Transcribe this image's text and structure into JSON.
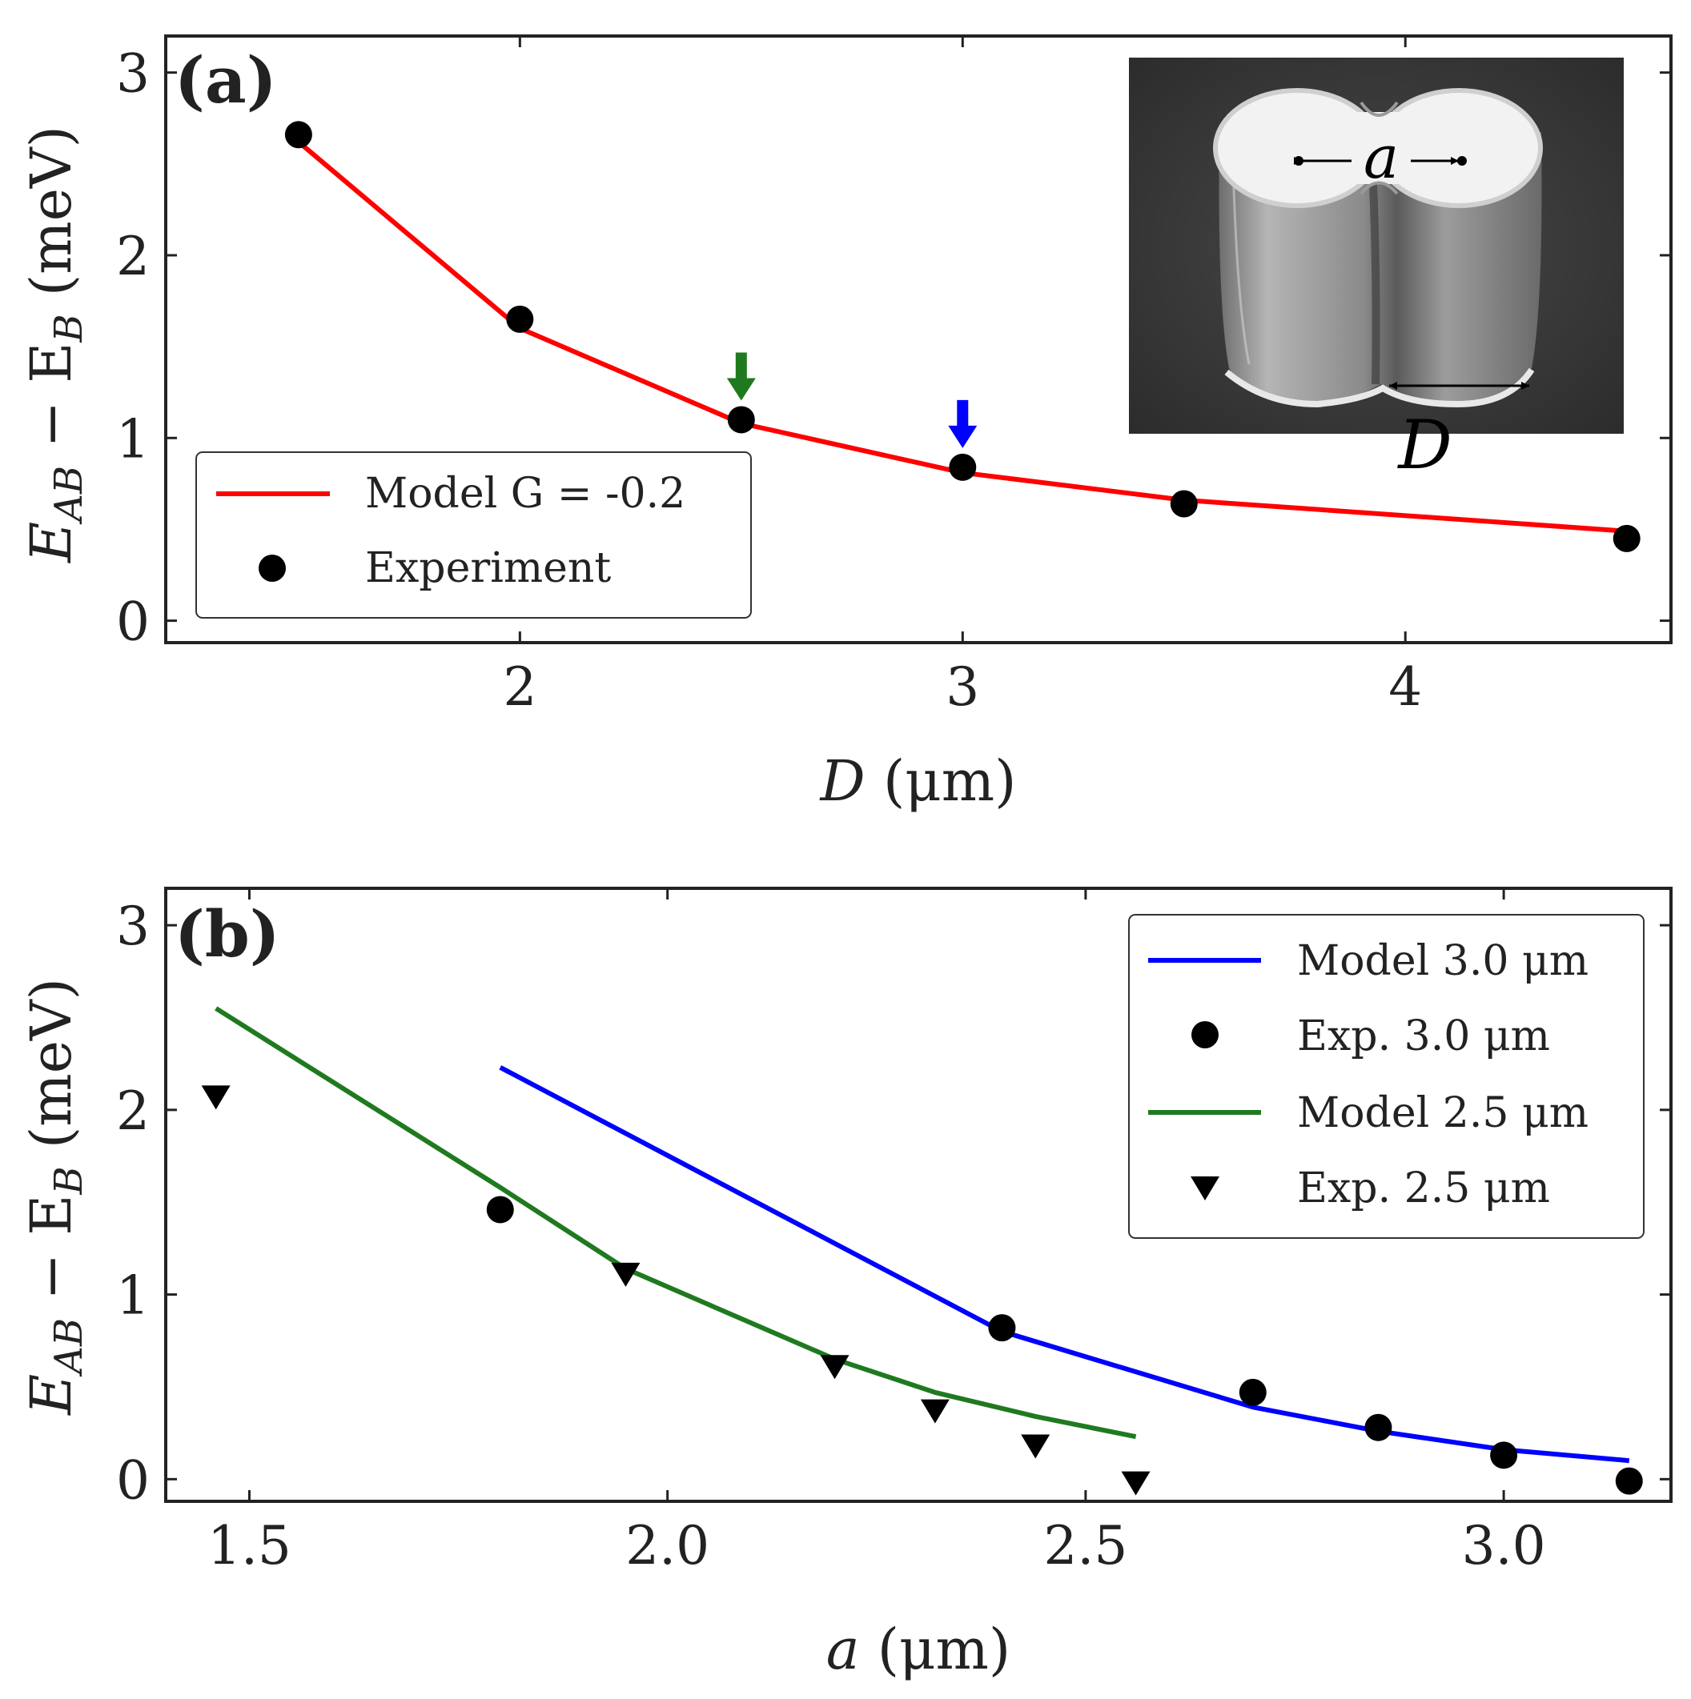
{
  "chart_data": [
    {
      "type": "line",
      "panel_label": "(a)",
      "xlabel_var": "D",
      "xlabel_unit": "(μm)",
      "ylabel": "E_AB − E_B (meV)",
      "ylabel_main": "E",
      "ylabel_sub1": "AB",
      "ylabel_mid": " − E",
      "ylabel_sub2": "B",
      "ylabel_unit": " (meV)",
      "xlim": [
        1.2,
        4.6
      ],
      "ylim": [
        -0.12,
        3.2
      ],
      "xticks": [
        2,
        3,
        4
      ],
      "xtick_labels": [
        "2",
        "3",
        "4"
      ],
      "yticks": [
        0,
        1,
        2,
        3
      ],
      "ytick_labels": [
        "0",
        "1",
        "2",
        "3"
      ],
      "series": [
        {
          "name": "Model G = -0.2",
          "kind": "line",
          "color": "#ff0000",
          "x": [
            1.5,
            2.0,
            2.5,
            3.0,
            3.5,
            4.5
          ],
          "y": [
            2.62,
            1.6,
            1.08,
            0.81,
            0.66,
            0.49
          ]
        },
        {
          "name": "Experiment",
          "kind": "scatter",
          "marker": "circle",
          "color": "#000000",
          "x": [
            1.5,
            2.0,
            2.5,
            3.0,
            3.5,
            4.5
          ],
          "y": [
            2.66,
            1.65,
            1.1,
            0.84,
            0.64,
            0.45
          ]
        }
      ],
      "legend": {
        "position": "bottom-left",
        "items": [
          "Model G = -0.2",
          "Experiment"
        ]
      },
      "arrows": [
        {
          "x": 2.5,
          "y": 1.1,
          "color": "#1f7a1f"
        },
        {
          "x": 3.0,
          "y": 0.84,
          "color": "#0000ff"
        }
      ],
      "inset": {
        "position": "top-right",
        "label_a": "a",
        "label_D": "D"
      }
    },
    {
      "type": "line",
      "panel_label": "(b)",
      "xlabel_var": "a",
      "xlabel_unit": "(μm)",
      "ylabel": "E_AB − E_B (meV)",
      "ylabel_main": "E",
      "ylabel_sub1": "AB",
      "ylabel_mid": " − E",
      "ylabel_sub2": "B",
      "ylabel_unit": " (meV)",
      "xlim": [
        1.4,
        3.2
      ],
      "ylim": [
        -0.12,
        3.2
      ],
      "xticks": [
        1.5,
        2.0,
        2.5,
        3.0
      ],
      "xtick_labels": [
        "1.5",
        "2.0",
        "2.5",
        "3.0"
      ],
      "yticks": [
        0,
        1,
        2,
        3
      ],
      "ytick_labels": [
        "0",
        "1",
        "2",
        "3"
      ],
      "series": [
        {
          "name": "Model 3.0 μm",
          "kind": "line",
          "color": "#0000ff",
          "x": [
            1.8,
            2.4,
            2.7,
            2.85,
            3.0,
            3.15
          ],
          "y": [
            2.23,
            0.8,
            0.39,
            0.26,
            0.16,
            0.1
          ]
        },
        {
          "name": "Exp. 3.0 μm",
          "kind": "scatter",
          "marker": "circle",
          "color": "#000000",
          "x": [
            1.8,
            2.4,
            2.7,
            2.85,
            3.0,
            3.15
          ],
          "y": [
            1.46,
            0.82,
            0.47,
            0.28,
            0.13,
            -0.01
          ]
        },
        {
          "name": "Model 2.5 μm",
          "kind": "line",
          "color": "#1f7a1f",
          "x": [
            1.46,
            1.8,
            1.95,
            2.2,
            2.32,
            2.44,
            2.56
          ],
          "y": [
            2.55,
            1.58,
            1.14,
            0.65,
            0.47,
            0.34,
            0.23
          ]
        },
        {
          "name": "Exp. 2.5 μm",
          "kind": "scatter",
          "marker": "triangle-down",
          "color": "#000000",
          "x": [
            1.46,
            1.95,
            2.2,
            2.32,
            2.44,
            2.56
          ],
          "y": [
            2.08,
            1.12,
            0.62,
            0.38,
            0.19,
            -0.01
          ]
        }
      ],
      "legend": {
        "position": "top-right",
        "items": [
          "Model 3.0 μm",
          "Exp. 3.0 μm",
          "Model 2.5 μm",
          "Exp. 2.5 μm"
        ]
      }
    }
  ]
}
